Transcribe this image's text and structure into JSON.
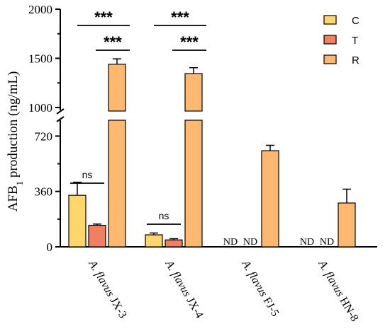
{
  "chart_data": {
    "type": "bar",
    "ylabel_prefix": "AFB",
    "ylabel_sub": "1",
    "ylabel_suffix": " production (ng/mL)",
    "y_axis_segments": [
      {
        "range": [
          0,
          800
        ],
        "ticks": [
          "0",
          "360",
          "720"
        ],
        "tick_values": [
          0,
          360,
          720
        ]
      },
      {
        "range": [
          1000,
          2000
        ],
        "ticks": [
          "1000",
          "1500",
          "2000"
        ],
        "tick_values": [
          1000,
          1500,
          2000
        ]
      }
    ],
    "axis_break": true,
    "categories": [
      "A. flavus JX-3",
      "A. flavus JX-4",
      "A. flavus FJ-5",
      "A. flavus HN-8"
    ],
    "series": [
      {
        "name": "C",
        "color": "#FFD66B",
        "values": [
          335,
          78,
          null,
          null
        ],
        "errors": [
          85,
          12,
          null,
          null
        ],
        "labels": [
          null,
          null,
          "ND",
          "ND"
        ]
      },
      {
        "name": "T",
        "color": "#F08060",
        "values": [
          140,
          45,
          null,
          null
        ],
        "errors": [
          8,
          8,
          null,
          null
        ],
        "labels": [
          null,
          null,
          "ND",
          "ND"
        ]
      },
      {
        "name": "R",
        "color": "#FFB870",
        "values": [
          1440,
          1345,
          625,
          285
        ],
        "errors": [
          55,
          60,
          35,
          90
        ],
        "labels": [
          null,
          null,
          null,
          null
        ]
      }
    ],
    "legend": {
      "position": "top-right",
      "entries": [
        "C",
        "T",
        "R"
      ]
    },
    "significance": [
      {
        "group": 0,
        "from": 0,
        "to": 2,
        "label": "***"
      },
      {
        "group": 0,
        "from": 1,
        "to": 2,
        "label": "***"
      },
      {
        "group": 0,
        "from": 0,
        "to": 1,
        "label": "ns"
      },
      {
        "group": 1,
        "from": 0,
        "to": 2,
        "label": "***"
      },
      {
        "group": 1,
        "from": 1,
        "to": 2,
        "label": "***"
      },
      {
        "group": 1,
        "from": 0,
        "to": 1,
        "label": "ns"
      }
    ],
    "grid": false
  }
}
